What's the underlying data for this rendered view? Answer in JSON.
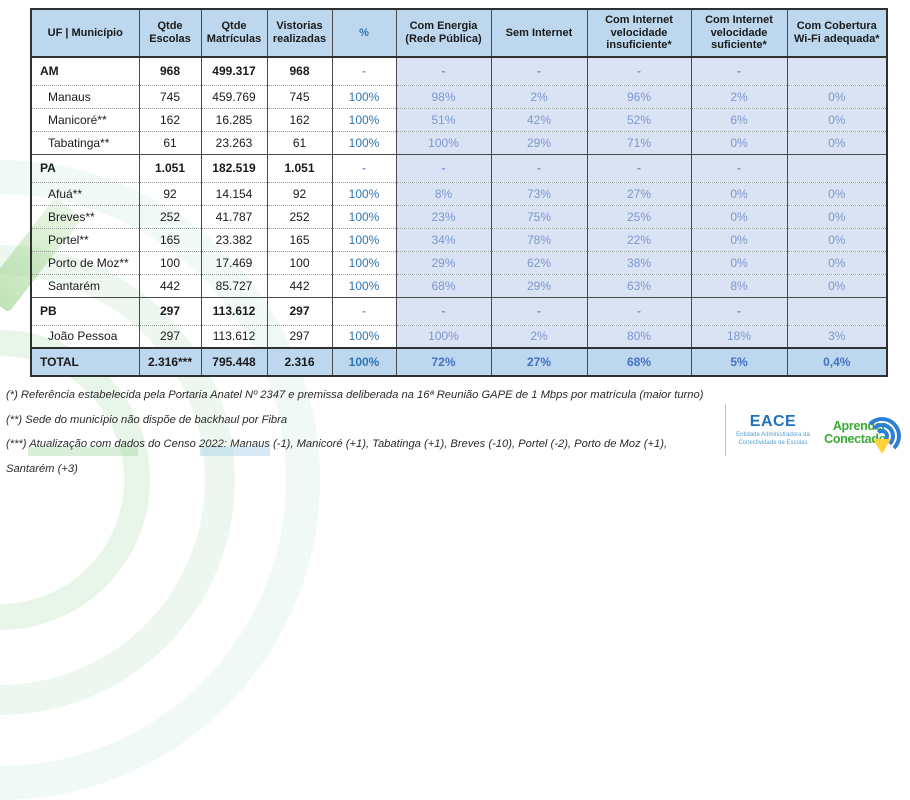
{
  "table": {
    "columns": [
      "UF | Município",
      "Qtde Escolas",
      "Qtde Matrículas",
      "Vistorias realizadas",
      "%",
      "Com Energia (Rede Pública)",
      "Sem Internet",
      "Com Internet velocidade insuficiente*",
      "Com Internet velocidade suficiente*",
      "Com Cobertura Wi-Fi adequada*"
    ],
    "rows": [
      {
        "type": "state",
        "cells": [
          "AM",
          "968",
          "499.317",
          "968",
          "-",
          "-",
          "-",
          "-",
          "-",
          ""
        ]
      },
      {
        "type": "muni",
        "cells": [
          "Manaus",
          "745",
          "459.769",
          "745",
          "100%",
          "98%",
          "2%",
          "96%",
          "2%",
          "0%"
        ]
      },
      {
        "type": "muni",
        "cells": [
          "Manicoré**",
          "162",
          "16.285",
          "162",
          "100%",
          "51%",
          "42%",
          "52%",
          "6%",
          "0%"
        ]
      },
      {
        "type": "muni",
        "cells": [
          "Tabatinga**",
          "61",
          "23.263",
          "61",
          "100%",
          "100%",
          "29%",
          "71%",
          "0%",
          "0%"
        ]
      },
      {
        "type": "state",
        "cells": [
          "PA",
          "1.051",
          "182.519",
          "1.051",
          "-",
          "-",
          "-",
          "-",
          "-",
          ""
        ]
      },
      {
        "type": "muni",
        "cells": [
          "Afuá**",
          "92",
          "14.154",
          "92",
          "100%",
          "8%",
          "73%",
          "27%",
          "0%",
          "0%"
        ]
      },
      {
        "type": "muni",
        "cells": [
          "Breves**",
          "252",
          "41.787",
          "252",
          "100%",
          "23%",
          "75%",
          "25%",
          "0%",
          "0%"
        ]
      },
      {
        "type": "muni",
        "cells": [
          "Portel**",
          "165",
          "23.382",
          "165",
          "100%",
          "34%",
          "78%",
          "22%",
          "0%",
          "0%"
        ]
      },
      {
        "type": "muni",
        "cells": [
          "Porto de Moz**",
          "100",
          "17.469",
          "100",
          "100%",
          "29%",
          "62%",
          "38%",
          "0%",
          "0%"
        ]
      },
      {
        "type": "muni",
        "cells": [
          "Santarém",
          "442",
          "85.727",
          "442",
          "100%",
          "68%",
          "29%",
          "63%",
          "8%",
          "0%"
        ]
      },
      {
        "type": "state",
        "cells": [
          "PB",
          "297",
          "113.612",
          "297",
          "-",
          "-",
          "-",
          "-",
          "-",
          ""
        ]
      },
      {
        "type": "muni",
        "cells": [
          "João Pessoa",
          "297",
          "113.612",
          "297",
          "100%",
          "100%",
          "2%",
          "80%",
          "18%",
          "3%"
        ]
      },
      {
        "type": "total",
        "cells": [
          "TOTAL",
          "2.316***",
          "795.448",
          "2.316",
          "100%",
          "72%",
          "27%",
          "68%",
          "5%",
          "0,4%"
        ]
      }
    ]
  },
  "footnotes": [
    "(*) Referência estabelecida pela Portaria Anatel Nº 2347 e premissa deliberada na 16ª Reunião GAPE de 1 Mbps por matrícula (maior turno)",
    "(**) Sede do município não dispõe de backhaul por Fibra",
    "(***) Atualização com dados do Censo 2022: Manaus (-1), Manicoré (+1), Tabatinga (+1), Breves (-10), Portel (-2), Porto de Moz (+1), Santarém (+3)"
  ],
  "logos": {
    "eace": {
      "name": "EACE",
      "subtitle_line1": "Entidade Administradora da",
      "subtitle_line2": "Conectividade de Escolas"
    },
    "aprender": {
      "line1": "Aprender",
      "line2": "Conectado",
      "wifi_icon": "wifi-arcs-with-pencil-tip"
    }
  },
  "colors": {
    "header_bg": "#bdd7ee",
    "shaded_bg": "#dae3f3",
    "total_bg": "#bdd7ee",
    "bright_blue": "#2e75b6",
    "muted_blue": "#7d96ce",
    "total_blue": "#4472c4",
    "eace_blue": "#2173b9",
    "aprender_green": "#3aaa35",
    "wifi_blue": "#2b7fd6",
    "pencil_yellow": "#ffd23b"
  }
}
